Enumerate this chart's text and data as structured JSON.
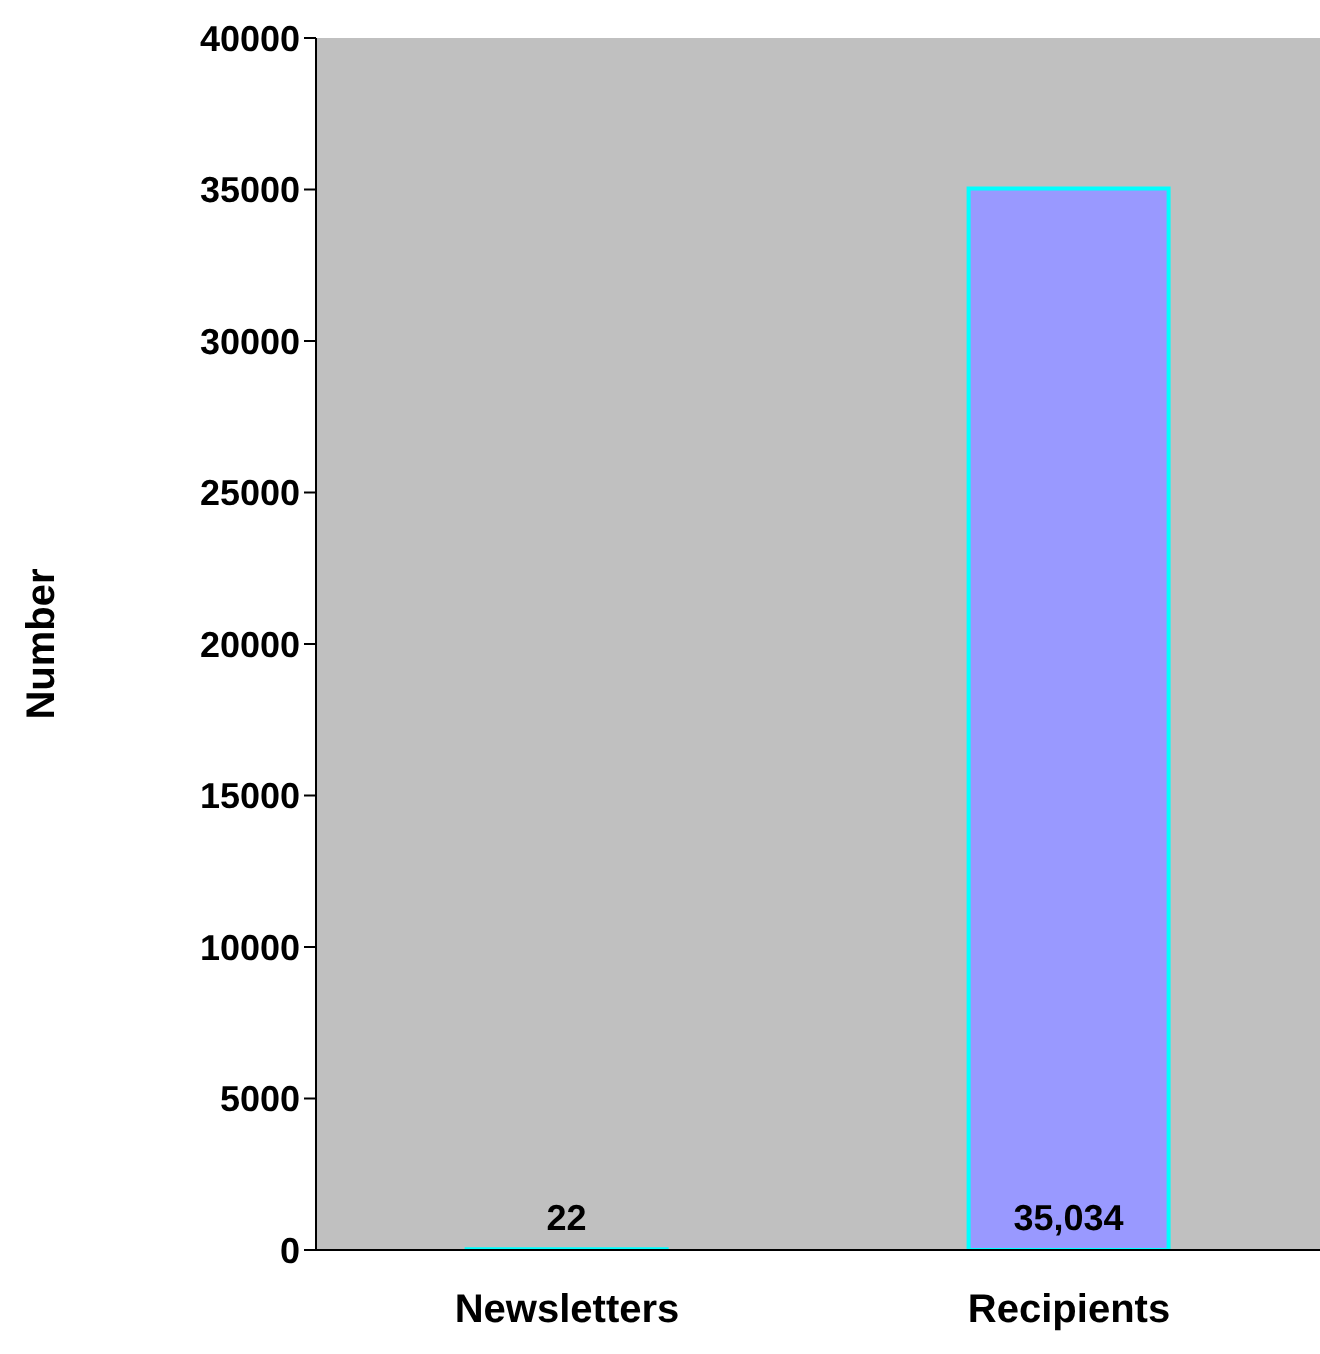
{
  "chart_data": {
    "type": "bar",
    "ylabel": "Number",
    "categories": [
      "Newsletters",
      "Recipients"
    ],
    "values": [
      22,
      35034
    ],
    "value_labels": [
      "22",
      "35,034"
    ],
    "color": "#9999ff",
    "ylim": [
      0,
      40000
    ],
    "yticks": [
      0,
      5000,
      10000,
      15000,
      20000,
      25000,
      30000,
      35000,
      40000
    ],
    "grid": false
  }
}
